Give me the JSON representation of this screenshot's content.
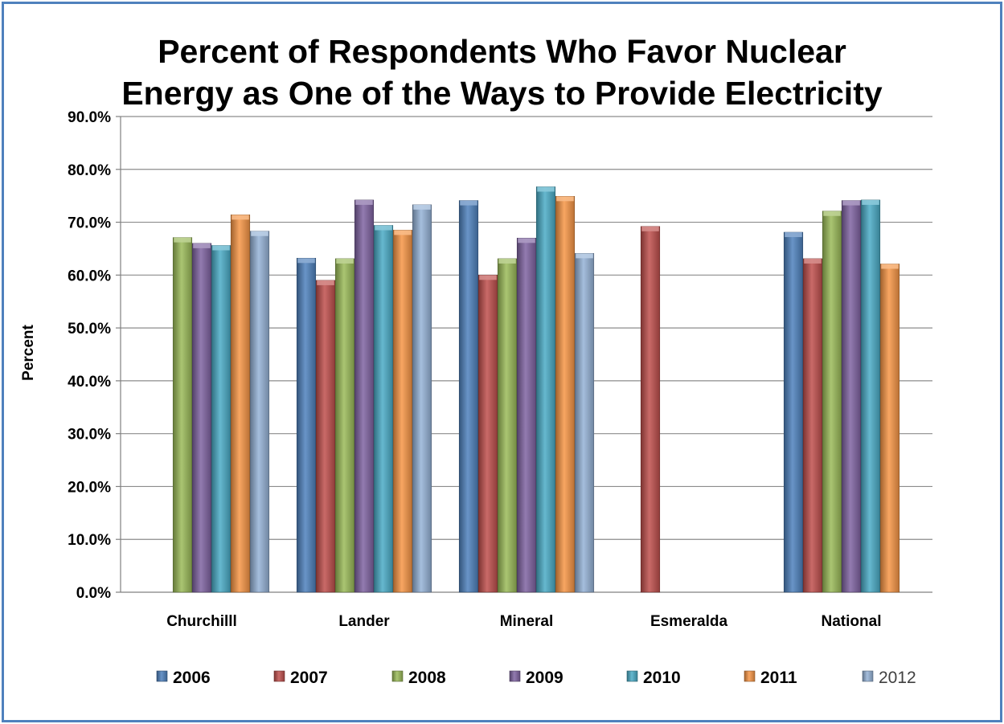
{
  "chart_data": {
    "type": "bar",
    "title_line1": "Percent of Respondents Who Favor Nuclear",
    "title_line2": "Energy as One of the Ways to Provide Electricity",
    "ylabel": "Percent",
    "xlabel": "",
    "ylim": [
      0,
      90
    ],
    "yticks": [
      "0.0%",
      "10.0%",
      "20.0%",
      "30.0%",
      "40.0%",
      "50.0%",
      "60.0%",
      "70.0%",
      "80.0%",
      "90.0%"
    ],
    "grid": true,
    "legend_position": "bottom",
    "categories": [
      "Churchilll",
      "Lander",
      "Mineral",
      "Esmeralda",
      "National"
    ],
    "series": [
      {
        "name": "2006",
        "color": "#4f81bd",
        "values": [
          null,
          63.2,
          74.1,
          null,
          68.1
        ]
      },
      {
        "name": "2007",
        "color": "#c0504d",
        "values": [
          null,
          59.0,
          60.0,
          69.2,
          63.1
        ]
      },
      {
        "name": "2008",
        "color": "#9bbb59",
        "values": [
          67.1,
          63.1,
          63.1,
          null,
          72.1
        ]
      },
      {
        "name": "2009",
        "color": "#8064a2",
        "values": [
          66.0,
          74.2,
          67.0,
          null,
          74.1
        ]
      },
      {
        "name": "2010",
        "color": "#4bacc6",
        "values": [
          65.6,
          69.4,
          76.7,
          null,
          74.2
        ]
      },
      {
        "name": "2011",
        "color": "#f79646",
        "values": [
          71.4,
          68.5,
          74.9,
          null,
          62.1
        ]
      },
      {
        "name": "2012",
        "color": "#95b3d7",
        "values": [
          68.3,
          73.3,
          64.1,
          null,
          null
        ]
      }
    ]
  }
}
